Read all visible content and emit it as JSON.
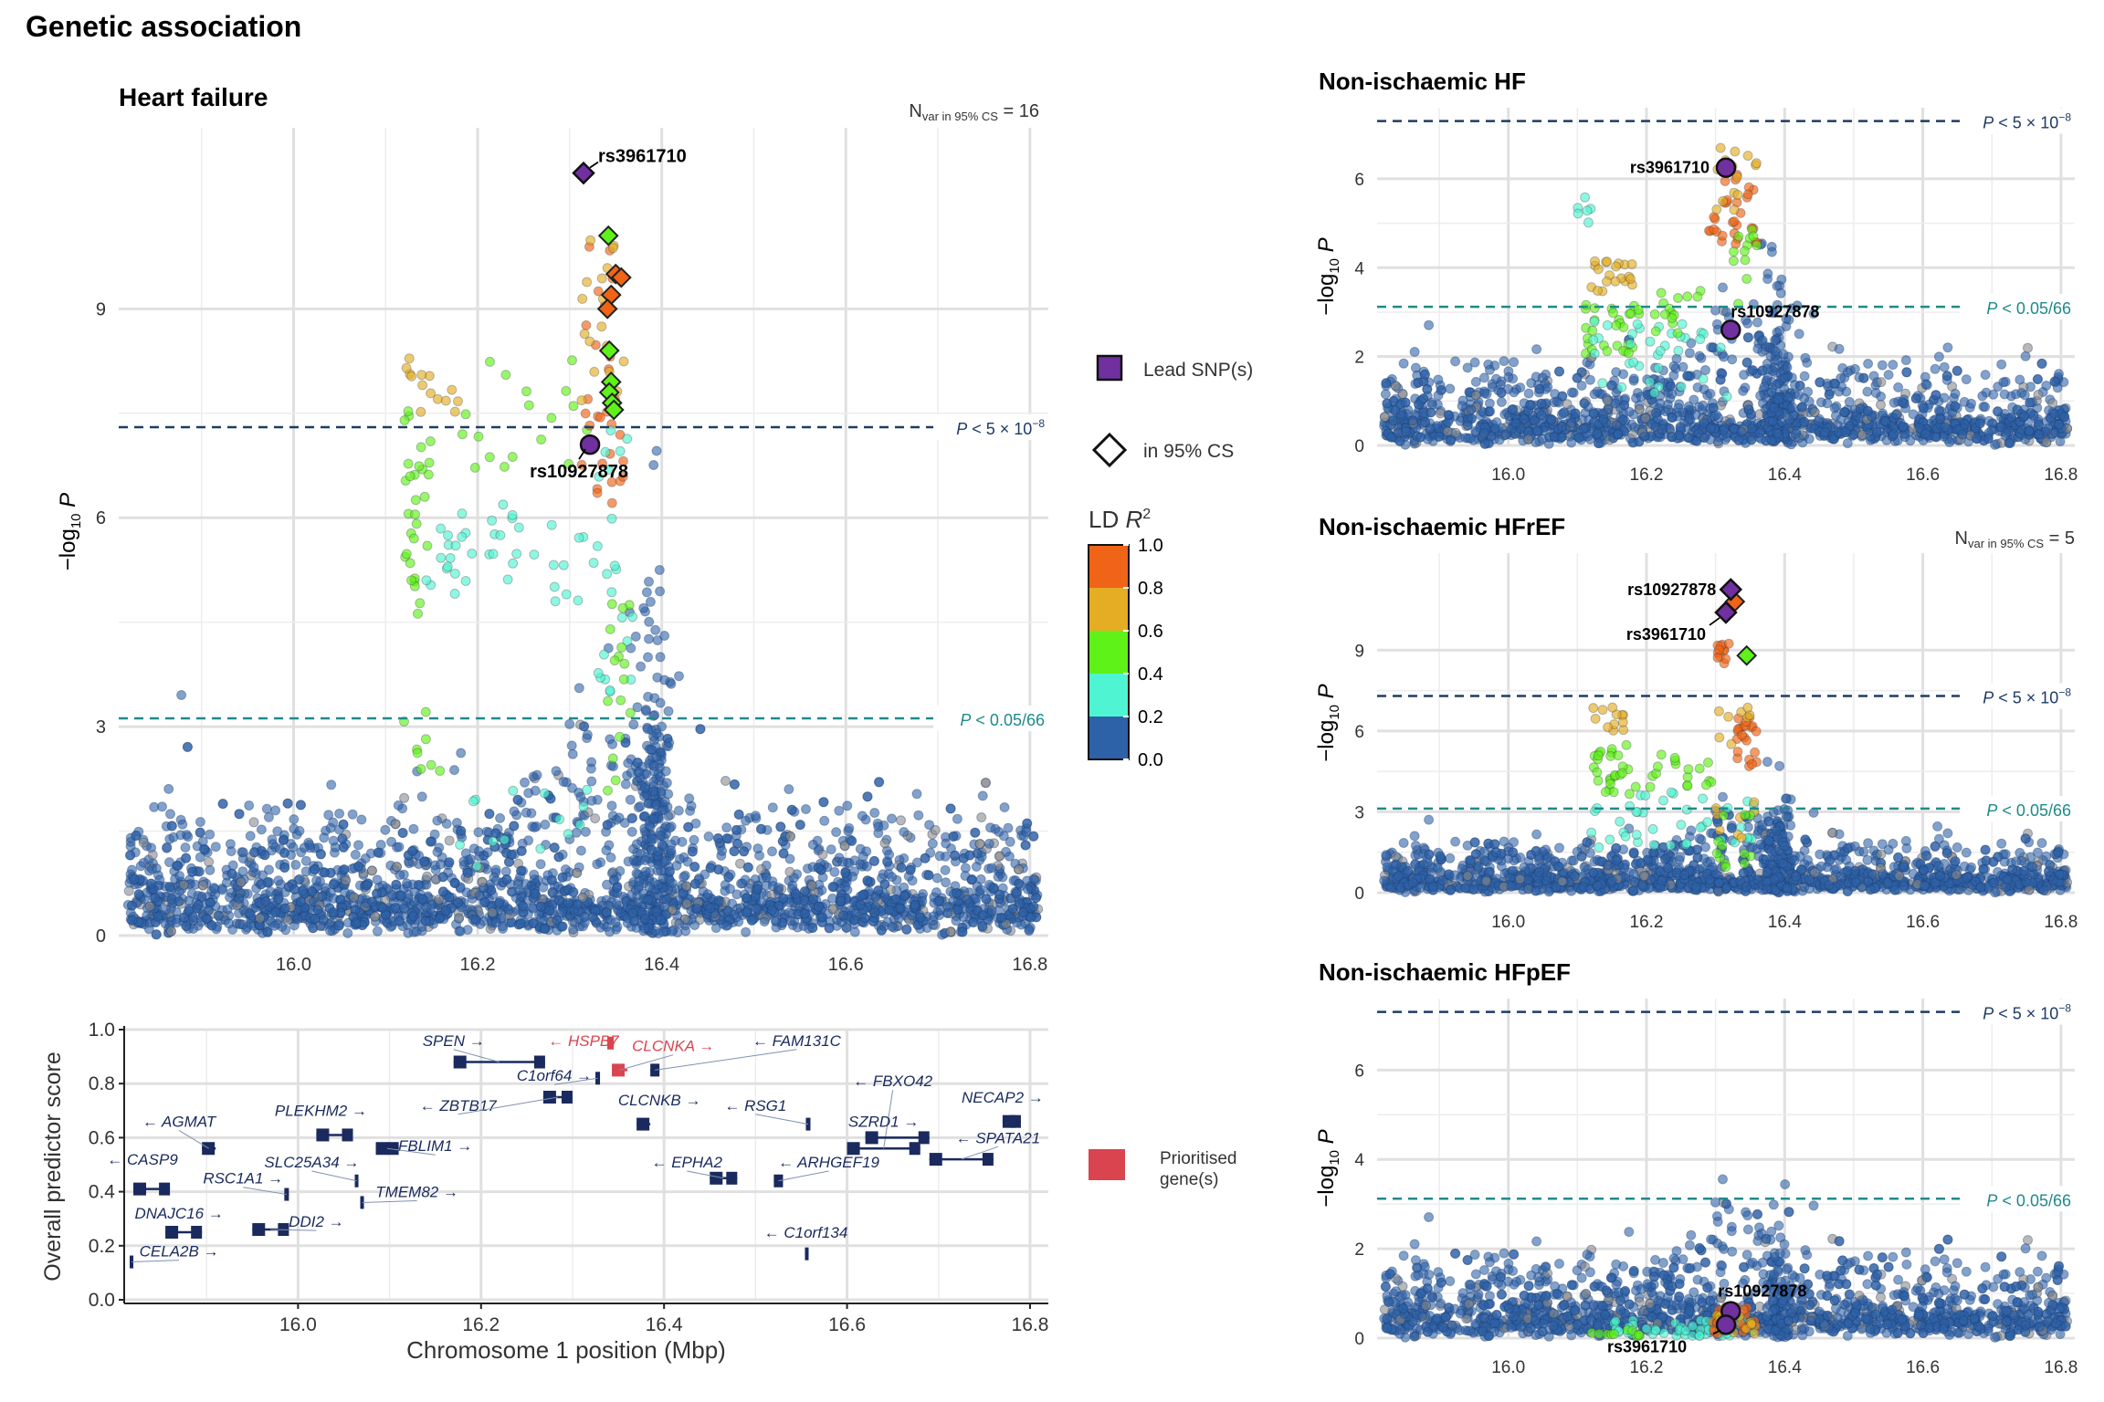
{
  "page_title": "Genetic association",
  "thresholds": {
    "gw_label": "P < 5 × 10",
    "gw_exp": "−8",
    "bonf_label": "P < 0.05/66",
    "gw_value": 7.3,
    "bonf_value": 3.12
  },
  "y_axis_label": "−log10 P",
  "legend": {
    "lead": "Lead SNP(s)",
    "cs": "in 95% CS",
    "ld_title": "LD R²",
    "ld_ticks": [
      "1.0",
      "0.8",
      "0.6",
      "0.4",
      "0.2",
      "0.0"
    ],
    "prioritised_line1": "Prioritised",
    "prioritised_line2": "gene(s)"
  },
  "gene_panel": {
    "ylabel": "Overall predictor score",
    "xlabel": "Chromosome 1 position (Mbp)"
  },
  "chart_data": [
    {
      "type": "scatter",
      "title": "Heart failure",
      "ncs_label": "Nvar in 95% CS = 16",
      "ncs": 16,
      "xlim": [
        15.81,
        16.82
      ],
      "ylim": [
        0,
        11.6
      ],
      "x_ticks": [
        16.0,
        16.2,
        16.4,
        16.6,
        16.8
      ],
      "y_ticks": [
        0,
        3,
        6,
        9
      ],
      "lead": [
        {
          "rsid": "rs3961710",
          "x": 16.315,
          "y": 10.95,
          "shape": "diamond"
        },
        {
          "rsid": "rs10927878",
          "x": 16.322,
          "y": 7.05,
          "shape": "circle"
        }
      ],
      "credible_set": [
        {
          "x": 16.342,
          "y": 10.05,
          "ld": 0.45
        },
        {
          "x": 16.35,
          "y": 9.5,
          "ld": 0.95
        },
        {
          "x": 16.356,
          "y": 9.45,
          "ld": 0.92
        },
        {
          "x": 16.345,
          "y": 9.2,
          "ld": 0.9
        },
        {
          "x": 16.341,
          "y": 9.0,
          "ld": 0.88
        },
        {
          "x": 16.343,
          "y": 8.4,
          "ld": 0.45
        },
        {
          "x": 16.345,
          "y": 7.95,
          "ld": 0.42
        },
        {
          "x": 16.343,
          "y": 7.8,
          "ld": 0.42
        },
        {
          "x": 16.346,
          "y": 7.65,
          "ld": 0.4
        },
        {
          "x": 16.348,
          "y": 7.55,
          "ld": 0.4
        }
      ]
    },
    {
      "type": "scatter",
      "title": "Non-ischaemic HF",
      "xlim": [
        15.81,
        16.82
      ],
      "ylim": [
        0,
        7.6
      ],
      "x_ticks": [
        16.0,
        16.2,
        16.4,
        16.6,
        16.8
      ],
      "y_ticks": [
        0,
        2,
        4,
        6
      ],
      "lead": [
        {
          "rsid": "rs3961710",
          "x": 16.315,
          "y": 6.25,
          "shape": "circle"
        },
        {
          "rsid": "rs10927878",
          "x": 16.322,
          "y": 2.6,
          "shape": "circle"
        }
      ]
    },
    {
      "type": "scatter",
      "title": "Non-ischaemic HFrEF",
      "ncs_label": "Nvar in 95% CS = 5",
      "ncs": 5,
      "xlim": [
        15.81,
        16.82
      ],
      "ylim": [
        0,
        12.6
      ],
      "x_ticks": [
        16.0,
        16.2,
        16.4,
        16.6,
        16.8
      ],
      "y_ticks": [
        0,
        3,
        6,
        9
      ],
      "lead": [
        {
          "rsid": "rs10927878",
          "x": 16.322,
          "y": 11.25,
          "shape": "diamond"
        },
        {
          "rsid": "rs3961710",
          "x": 16.315,
          "y": 10.4,
          "shape": "diamond"
        }
      ],
      "credible_set": [
        {
          "x": 16.328,
          "y": 10.8,
          "ld": 0.85
        },
        {
          "x": 16.345,
          "y": 8.8,
          "ld": 0.45
        }
      ]
    },
    {
      "type": "scatter",
      "title": "Non-ischaemic HFpEF",
      "xlim": [
        15.81,
        16.82
      ],
      "ylim": [
        0,
        7.6
      ],
      "x_ticks": [
        16.0,
        16.2,
        16.4,
        16.6,
        16.8
      ],
      "y_ticks": [
        0,
        2,
        4,
        6
      ],
      "lead": [
        {
          "rsid": "rs10927878",
          "x": 16.322,
          "y": 0.6,
          "shape": "circle"
        },
        {
          "rsid": "rs3961710",
          "x": 16.315,
          "y": 0.3,
          "shape": "circle"
        }
      ]
    },
    {
      "type": "gene_track",
      "xlim": [
        15.81,
        16.82
      ],
      "ylim": [
        0,
        1.0
      ],
      "x_ticks": [
        16.0,
        16.2,
        16.4,
        16.6,
        16.8
      ],
      "y_ticks": [
        0.0,
        0.2,
        0.4,
        0.6,
        0.8,
        1.0
      ],
      "genes": [
        {
          "name": "SPEN",
          "start": 16.17,
          "end": 16.27,
          "score": 0.88,
          "label": "SPEN →",
          "lx": 16.17,
          "ly": 0.94,
          "prioritised": false
        },
        {
          "name": "HSPB7",
          "start": 16.338,
          "end": 16.345,
          "score": 0.95,
          "label": "← HSPB7",
          "lx": 16.312,
          "ly": 0.94,
          "prioritised": true
        },
        {
          "name": "CLCNKA",
          "start": 16.343,
          "end": 16.36,
          "score": 0.85,
          "label": "CLCNKA →",
          "lx": 16.41,
          "ly": 0.92,
          "prioritised": true
        },
        {
          "name": "FAM131C",
          "start": 16.385,
          "end": 16.395,
          "score": 0.85,
          "label": "← FAM131C",
          "lx": 16.545,
          "ly": 0.94,
          "prioritised": false
        },
        {
          "name": "C1orf64",
          "start": 16.325,
          "end": 16.33,
          "score": 0.82,
          "label": "C1orf64 →",
          "lx": 16.28,
          "ly": 0.81,
          "prioritised": false
        },
        {
          "name": "ZBTB17",
          "start": 16.268,
          "end": 16.3,
          "score": 0.75,
          "label": "← ZBTB17",
          "lx": 16.175,
          "ly": 0.7,
          "prioritised": false
        },
        {
          "name": "CLCNKB",
          "start": 16.37,
          "end": 16.385,
          "score": 0.65,
          "label": "CLCNKB →",
          "lx": 16.395,
          "ly": 0.72,
          "prioritised": false
        },
        {
          "name": "RSG1",
          "start": 16.555,
          "end": 16.56,
          "score": 0.65,
          "label": "← RSG1",
          "lx": 16.5,
          "ly": 0.7,
          "prioritised": false
        },
        {
          "name": "FBXO42",
          "start": 16.6,
          "end": 16.68,
          "score": 0.56,
          "label": "← FBXO42",
          "lx": 16.65,
          "ly": 0.79,
          "prioritised": false
        },
        {
          "name": "NECAP2",
          "start": 16.77,
          "end": 16.79,
          "score": 0.66,
          "label": "NECAP2 →",
          "lx": 16.77,
          "ly": 0.73,
          "prioritised": false
        },
        {
          "name": "SZRD1",
          "start": 16.62,
          "end": 16.69,
          "score": 0.6,
          "label": "SZRD1 →",
          "lx": 16.64,
          "ly": 0.64,
          "prioritised": false
        },
        {
          "name": "SPATA21",
          "start": 16.69,
          "end": 16.76,
          "score": 0.52,
          "label": "← SPATA21",
          "lx": 16.765,
          "ly": 0.58,
          "prioritised": false
        },
        {
          "name": "PLEKHM2",
          "start": 16.02,
          "end": 16.06,
          "score": 0.61,
          "label": "PLEKHM2 →",
          "lx": 16.025,
          "ly": 0.68,
          "prioritised": false
        },
        {
          "name": "AGMAT",
          "start": 15.895,
          "end": 15.91,
          "score": 0.56,
          "label": "← AGMAT",
          "lx": 15.87,
          "ly": 0.64,
          "prioritised": false
        },
        {
          "name": "FBLIM1",
          "start": 16.085,
          "end": 16.11,
          "score": 0.56,
          "label": "FBLIM1 →",
          "lx": 16.15,
          "ly": 0.55,
          "prioritised": false
        },
        {
          "name": "SLC25A34",
          "start": 16.062,
          "end": 16.066,
          "score": 0.44,
          "label": "SLC25A34 →",
          "lx": 16.015,
          "ly": 0.49,
          "prioritised": false
        },
        {
          "name": "CASP9",
          "start": 15.82,
          "end": 15.86,
          "score": 0.41,
          "label": "← CASP9",
          "lx": 15.83,
          "ly": 0.5,
          "prioritised": false
        },
        {
          "name": "RSC1A1",
          "start": 15.985,
          "end": 15.99,
          "score": 0.39,
          "label": "RSC1A1 →",
          "lx": 15.94,
          "ly": 0.43,
          "prioritised": false
        },
        {
          "name": "TMEM82",
          "start": 16.068,
          "end": 16.072,
          "score": 0.36,
          "label": "TMEM82 →",
          "lx": 16.13,
          "ly": 0.38,
          "prioritised": false
        },
        {
          "name": "EPHA2",
          "start": 16.45,
          "end": 16.48,
          "score": 0.45,
          "label": "← EPHA2",
          "lx": 16.425,
          "ly": 0.49,
          "prioritised": false
        },
        {
          "name": "ARHGEF19",
          "start": 16.52,
          "end": 16.53,
          "score": 0.44,
          "label": "← ARHGEF19",
          "lx": 16.58,
          "ly": 0.49,
          "prioritised": false
        },
        {
          "name": "DNAJC16",
          "start": 15.855,
          "end": 15.895,
          "score": 0.25,
          "label": "DNAJC16 →",
          "lx": 15.87,
          "ly": 0.3,
          "prioritised": false
        },
        {
          "name": "DDI2",
          "start": 15.95,
          "end": 15.99,
          "score": 0.26,
          "label": "DDI2 →",
          "lx": 16.02,
          "ly": 0.27,
          "prioritised": false
        },
        {
          "name": "CELA2B",
          "start": 15.816,
          "end": 15.82,
          "score": 0.14,
          "label": "CELA2B →",
          "lx": 15.87,
          "ly": 0.16,
          "prioritised": false
        },
        {
          "name": "C1orf134",
          "start": 16.554,
          "end": 16.558,
          "score": 0.17,
          "label": "← C1orf134",
          "lx": 16.555,
          "ly": 0.23,
          "prioritised": false
        }
      ]
    }
  ]
}
